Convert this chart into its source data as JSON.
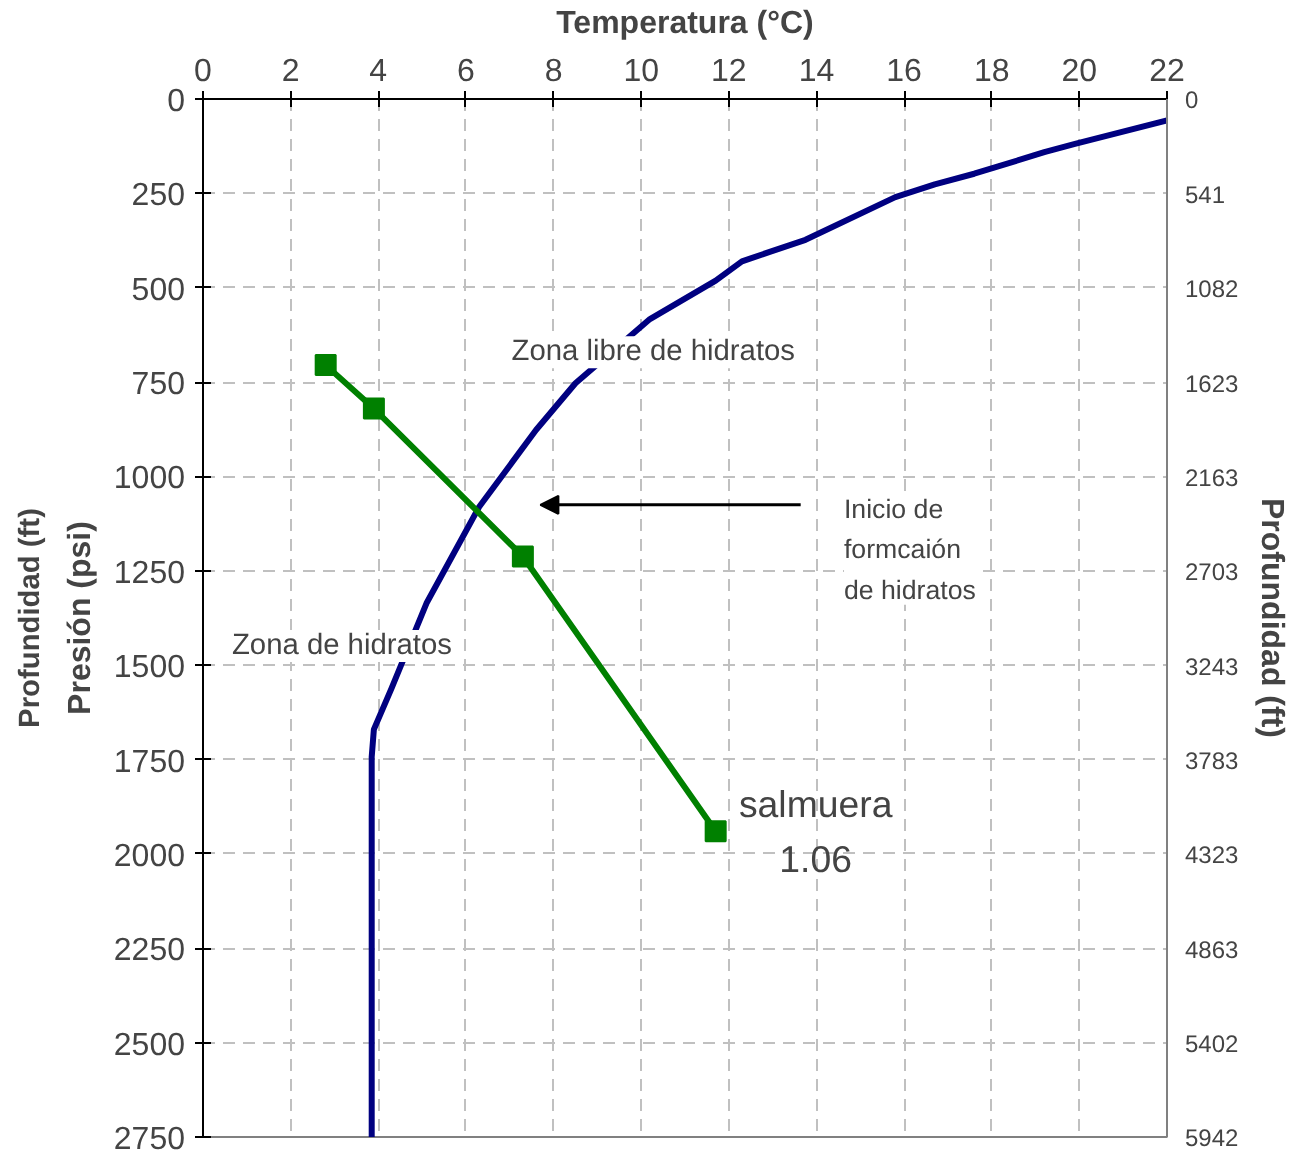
{
  "chart_data": {
    "type": "line",
    "xlabel": "Temperatura (°C)",
    "ylabel": "Presión (psi)",
    "y2label": "Profundidad (ft)",
    "xlim": [
      0,
      22
    ],
    "xticks": [
      0,
      2,
      4,
      6,
      8,
      10,
      12,
      14,
      16,
      18,
      20,
      22
    ],
    "ylim": [
      2750,
      0
    ],
    "yticks": [
      0,
      250,
      500,
      750,
      1000,
      1250,
      1500,
      1750,
      2000,
      2250,
      2500,
      2750
    ],
    "y2lim": [
      5942,
      0
    ],
    "y2ticks": [
      0,
      541,
      1082,
      1623,
      2163,
      2703,
      3243,
      3783,
      4323,
      4863,
      5402,
      5942
    ],
    "grid": true,
    "line_style": "solid",
    "series": [
      {
        "color": "#000080",
        "marker": "none",
        "x": [
          22.0,
          19.9,
          19.2,
          17.6,
          16.7,
          15.8,
          13.75,
          12.3,
          11.7,
          10.2,
          8.5,
          7.6,
          6.3,
          5.1,
          4.3,
          3.9,
          3.85,
          3.85
        ],
        "values": [
          57,
          119,
          141,
          198,
          226,
          260,
          373,
          430,
          481,
          583,
          753,
          877,
          1081,
          1336,
          1562,
          1670,
          1743,
          2750
        ]
      },
      {
        "name": "salmuera 1.06",
        "color": "#008000",
        "marker": "square",
        "x": [
          2.8,
          3.9,
          7.3,
          11.7
        ],
        "values": [
          705,
          820,
          1212,
          1940
        ]
      }
    ],
    "annotations": [
      "Zona libre de hidratos",
      "Zona de hidratos",
      "Inicio de formcaión de hidratos",
      "Profundidad (ft)"
    ]
  }
}
